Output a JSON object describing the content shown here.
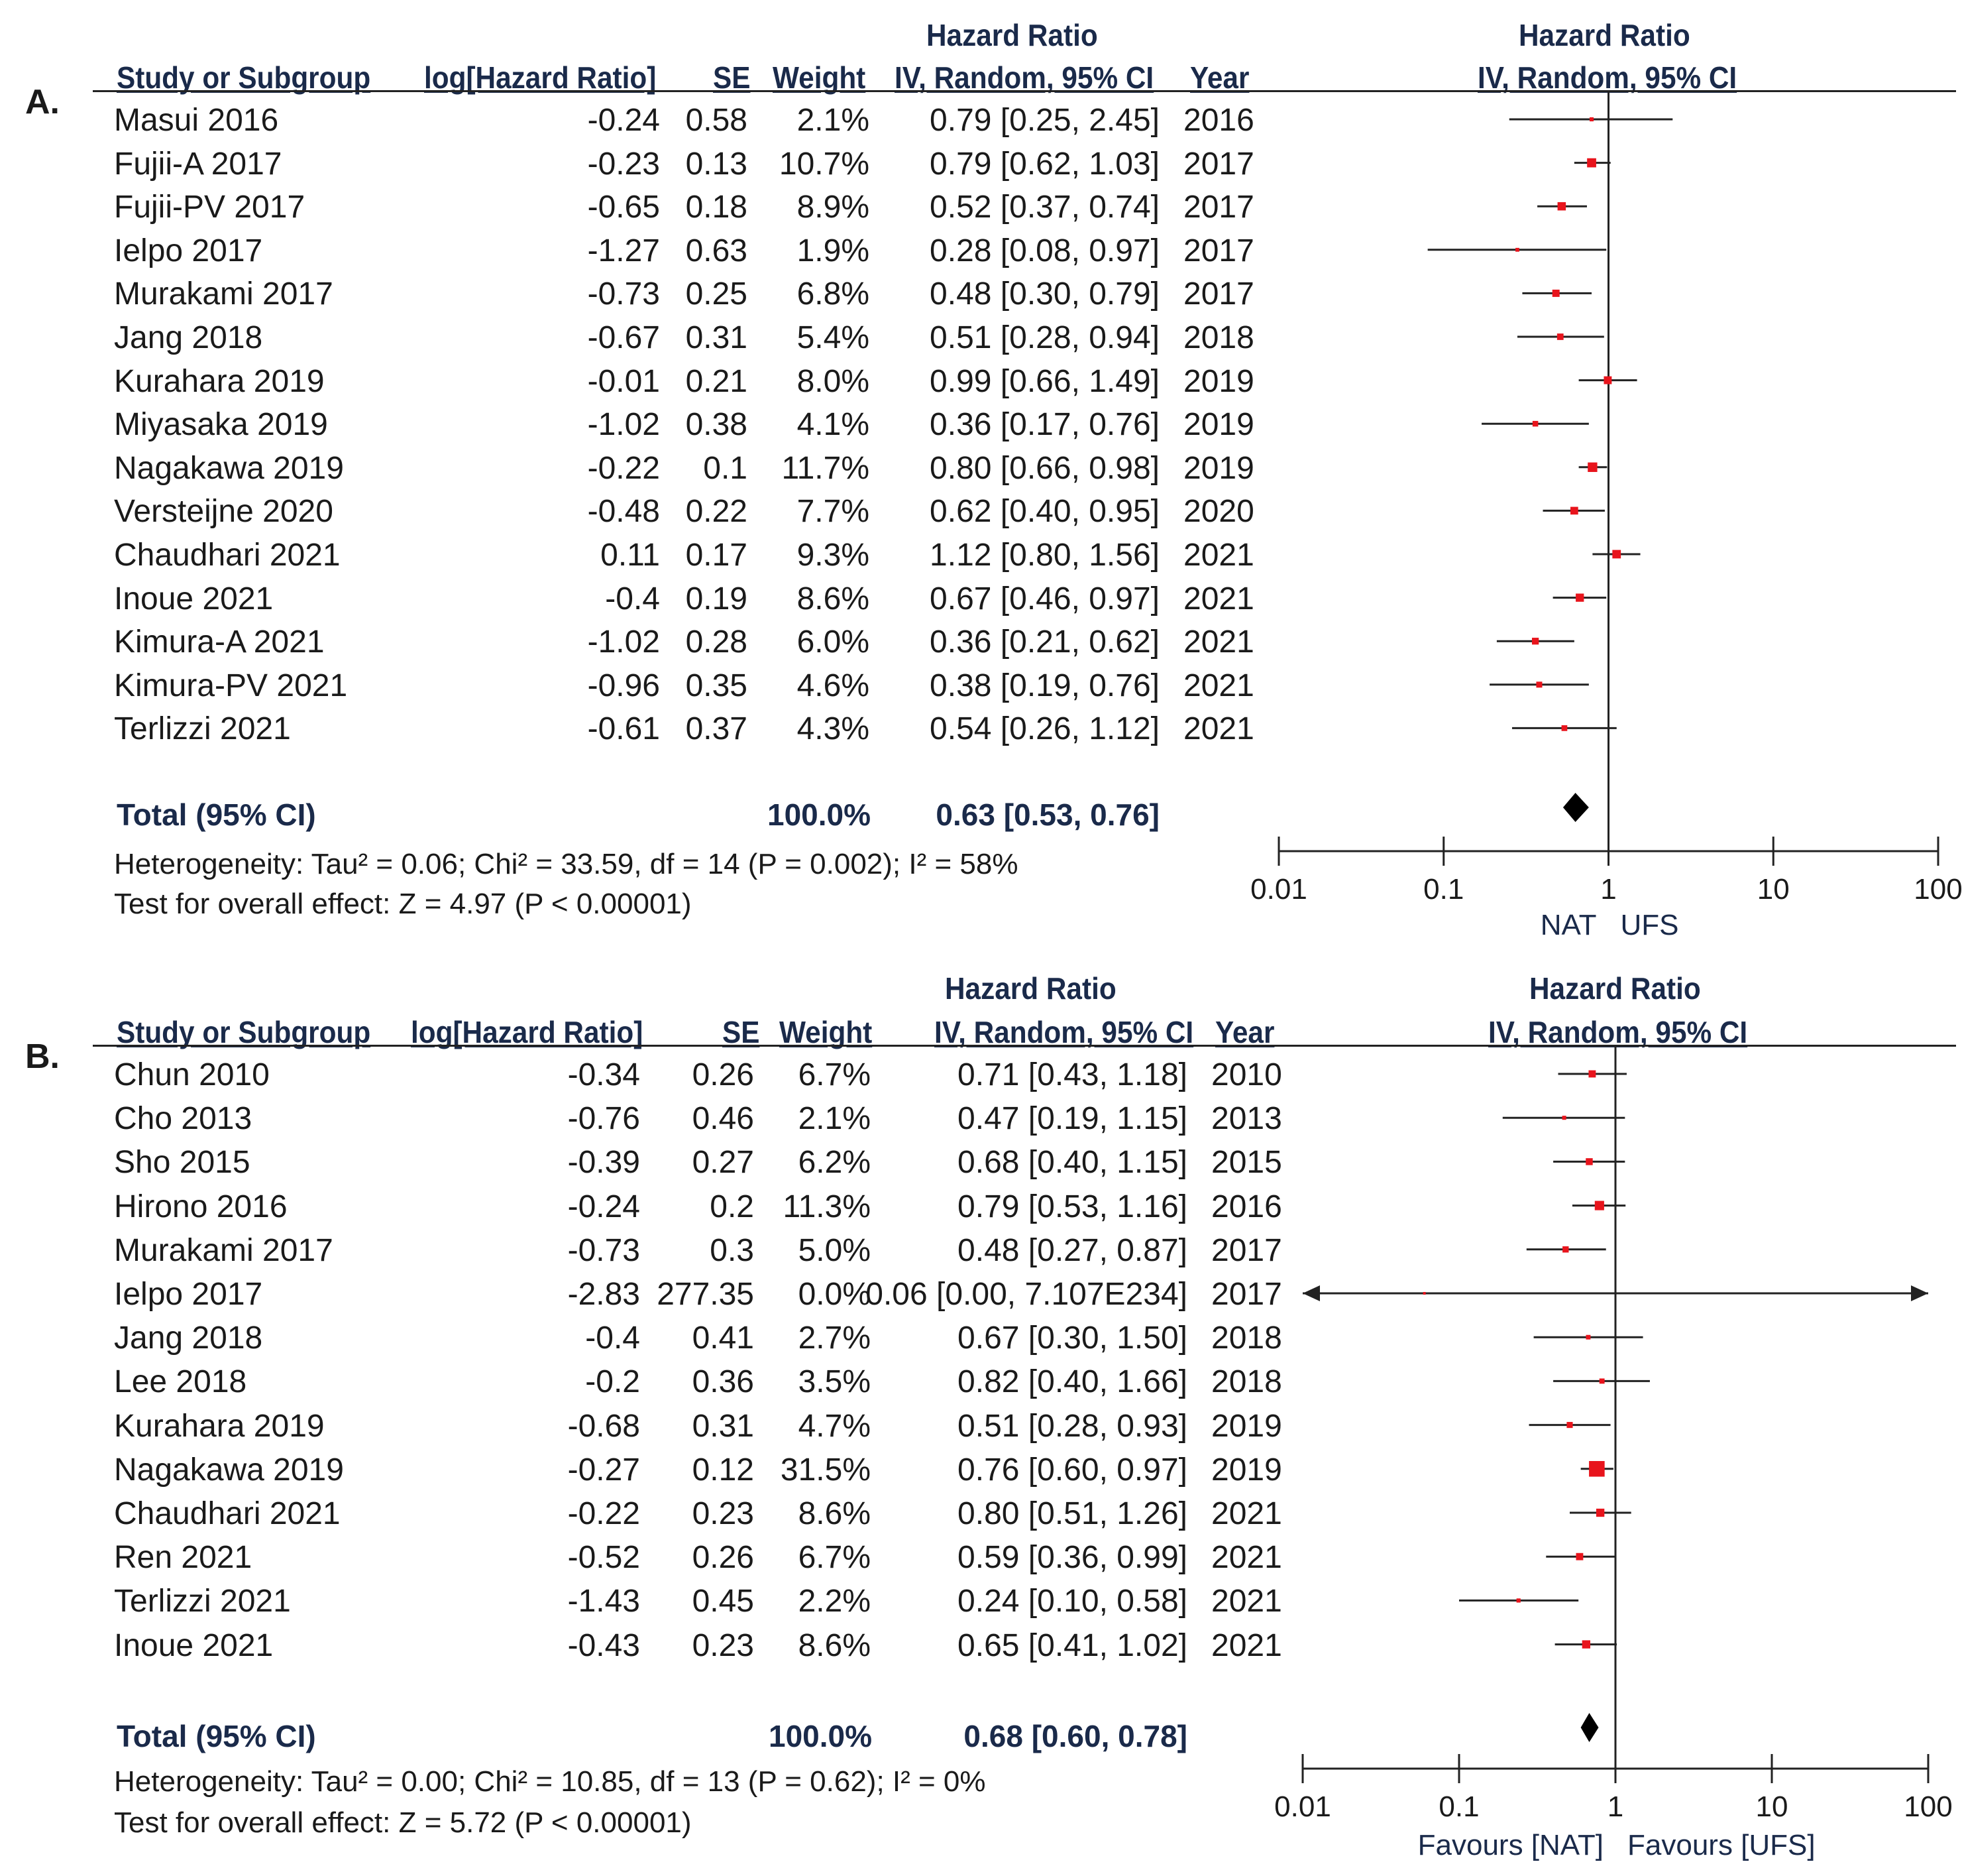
{
  "chart_data": [
    {
      "type": "forest",
      "panel": "A.",
      "header_group": "Hazard Ratio",
      "columns": [
        "Study or Subgroup",
        "log[Hazard Ratio]",
        "SE",
        "Weight",
        "IV, Random, 95% CI",
        "Year"
      ],
      "plot_header_group": "Hazard Ratio",
      "plot_header": "IV, Random, 95% CI",
      "rows": [
        {
          "study": "Masui 2016",
          "loghr": "-0.24",
          "se": "0.58",
          "weight": "2.1%",
          "ci": "0.79 [0.25, 2.45]",
          "year": "2016",
          "hr": 0.79,
          "lo": 0.25,
          "hi": 2.45,
          "w": 2.1
        },
        {
          "study": "Fujii-A 2017",
          "loghr": "-0.23",
          "se": "0.13",
          "weight": "10.7%",
          "ci": "0.79 [0.62, 1.03]",
          "year": "2017",
          "hr": 0.79,
          "lo": 0.62,
          "hi": 1.03,
          "w": 10.7
        },
        {
          "study": "Fujii-PV 2017",
          "loghr": "-0.65",
          "se": "0.18",
          "weight": "8.9%",
          "ci": "0.52 [0.37, 0.74]",
          "year": "2017",
          "hr": 0.52,
          "lo": 0.37,
          "hi": 0.74,
          "w": 8.9
        },
        {
          "study": "Ielpo 2017",
          "loghr": "-1.27",
          "se": "0.63",
          "weight": "1.9%",
          "ci": "0.28 [0.08, 0.97]",
          "year": "2017",
          "hr": 0.28,
          "lo": 0.08,
          "hi": 0.97,
          "w": 1.9
        },
        {
          "study": "Murakami 2017",
          "loghr": "-0.73",
          "se": "0.25",
          "weight": "6.8%",
          "ci": "0.48 [0.30, 0.79]",
          "year": "2017",
          "hr": 0.48,
          "lo": 0.3,
          "hi": 0.79,
          "w": 6.8
        },
        {
          "study": "Jang 2018",
          "loghr": "-0.67",
          "se": "0.31",
          "weight": "5.4%",
          "ci": "0.51 [0.28, 0.94]",
          "year": "2018",
          "hr": 0.51,
          "lo": 0.28,
          "hi": 0.94,
          "w": 5.4
        },
        {
          "study": "Kurahara 2019",
          "loghr": "-0.01",
          "se": "0.21",
          "weight": "8.0%",
          "ci": "0.99 [0.66, 1.49]",
          "year": "2019",
          "hr": 0.99,
          "lo": 0.66,
          "hi": 1.49,
          "w": 8.0
        },
        {
          "study": "Miyasaka 2019",
          "loghr": "-1.02",
          "se": "0.38",
          "weight": "4.1%",
          "ci": "0.36 [0.17, 0.76]",
          "year": "2019",
          "hr": 0.36,
          "lo": 0.17,
          "hi": 0.76,
          "w": 4.1
        },
        {
          "study": "Nagakawa 2019",
          "loghr": "-0.22",
          "se": "0.1",
          "weight": "11.7%",
          "ci": "0.80 [0.66, 0.98]",
          "year": "2019",
          "hr": 0.8,
          "lo": 0.66,
          "hi": 0.98,
          "w": 11.7
        },
        {
          "study": "Versteijne 2020",
          "loghr": "-0.48",
          "se": "0.22",
          "weight": "7.7%",
          "ci": "0.62 [0.40, 0.95]",
          "year": "2020",
          "hr": 0.62,
          "lo": 0.4,
          "hi": 0.95,
          "w": 7.7
        },
        {
          "study": "Chaudhari 2021",
          "loghr": "0.11",
          "se": "0.17",
          "weight": "9.3%",
          "ci": "1.12 [0.80, 1.56]",
          "year": "2021",
          "hr": 1.12,
          "lo": 0.8,
          "hi": 1.56,
          "w": 9.3
        },
        {
          "study": "Inoue 2021",
          "loghr": "-0.4",
          "se": "0.19",
          "weight": "8.6%",
          "ci": "0.67 [0.46, 0.97]",
          "year": "2021",
          "hr": 0.67,
          "lo": 0.46,
          "hi": 0.97,
          "w": 8.6
        },
        {
          "study": "Kimura-A 2021",
          "loghr": "-1.02",
          "se": "0.28",
          "weight": "6.0%",
          "ci": "0.36 [0.21, 0.62]",
          "year": "2021",
          "hr": 0.36,
          "lo": 0.21,
          "hi": 0.62,
          "w": 6.0
        },
        {
          "study": "Kimura-PV 2021",
          "loghr": "-0.96",
          "se": "0.35",
          "weight": "4.6%",
          "ci": "0.38 [0.19, 0.76]",
          "year": "2021",
          "hr": 0.38,
          "lo": 0.19,
          "hi": 0.76,
          "w": 4.6
        },
        {
          "study": "Terlizzi 2021",
          "loghr": "-0.61",
          "se": "0.37",
          "weight": "4.3%",
          "ci": "0.54 [0.26, 1.12]",
          "year": "2021",
          "hr": 0.54,
          "lo": 0.26,
          "hi": 1.12,
          "w": 4.3
        }
      ],
      "total": {
        "label": "Total (95% CI)",
        "weight": "100.0%",
        "ci": "0.63 [0.53, 0.76]",
        "hr": 0.63,
        "lo": 0.53,
        "hi": 0.76
      },
      "heterogeneity": "Heterogeneity: Tau² = 0.06; Chi² = 33.59, df = 14 (P = 0.002); I² = 58%",
      "overall_effect": "Test for overall effect: Z = 4.97 (P < 0.00001)",
      "x_scale": "log",
      "x_ticks": [
        "0.01",
        "0.1",
        "1",
        "10",
        "100"
      ],
      "xlim": [
        0.01,
        100
      ],
      "favours_left": "NAT",
      "favours_right": "UFS"
    },
    {
      "type": "forest",
      "panel": "B.",
      "header_group": "Hazard Ratio",
      "columns": [
        "Study or Subgroup",
        "log[Hazard Ratio]",
        "SE",
        "Weight",
        "IV, Random, 95% CI",
        "Year"
      ],
      "plot_header_group": "Hazard Ratio",
      "plot_header": "IV, Random, 95% CI",
      "rows": [
        {
          "study": "Chun 2010",
          "loghr": "-0.34",
          "se": "0.26",
          "weight": "6.7%",
          "ci": "0.71 [0.43, 1.18]",
          "year": "2010",
          "hr": 0.71,
          "lo": 0.43,
          "hi": 1.18,
          "w": 6.7
        },
        {
          "study": "Cho 2013",
          "loghr": "-0.76",
          "se": "0.46",
          "weight": "2.1%",
          "ci": "0.47 [0.19, 1.15]",
          "year": "2013",
          "hr": 0.47,
          "lo": 0.19,
          "hi": 1.15,
          "w": 2.1
        },
        {
          "study": "Sho 2015",
          "loghr": "-0.39",
          "se": "0.27",
          "weight": "6.2%",
          "ci": "0.68 [0.40, 1.15]",
          "year": "2015",
          "hr": 0.68,
          "lo": 0.4,
          "hi": 1.15,
          "w": 6.2
        },
        {
          "study": "Hirono 2016",
          "loghr": "-0.24",
          "se": "0.2",
          "weight": "11.3%",
          "ci": "0.79 [0.53, 1.16]",
          "year": "2016",
          "hr": 0.79,
          "lo": 0.53,
          "hi": 1.16,
          "w": 11.3
        },
        {
          "study": "Murakami 2017",
          "loghr": "-0.73",
          "se": "0.3",
          "weight": "5.0%",
          "ci": "0.48 [0.27, 0.87]",
          "year": "2017",
          "hr": 0.48,
          "lo": 0.27,
          "hi": 0.87,
          "w": 5.0
        },
        {
          "study": "Ielpo 2017",
          "loghr": "-2.83",
          "se": "277.35",
          "weight": "0.0%",
          "ci": "0.06 [0.00, 7.107E234]",
          "year": "2017",
          "hr": 0.06,
          "lo": 0.0,
          "hi": 7.107e+234,
          "w": 0.0,
          "arrow_left": true,
          "arrow_right": true
        },
        {
          "study": "Jang 2018",
          "loghr": "-0.4",
          "se": "0.41",
          "weight": "2.7%",
          "ci": "0.67 [0.30, 1.50]",
          "year": "2018",
          "hr": 0.67,
          "lo": 0.3,
          "hi": 1.5,
          "w": 2.7
        },
        {
          "study": "Lee 2018",
          "loghr": "-0.2",
          "se": "0.36",
          "weight": "3.5%",
          "ci": "0.82 [0.40, 1.66]",
          "year": "2018",
          "hr": 0.82,
          "lo": 0.4,
          "hi": 1.66,
          "w": 3.5
        },
        {
          "study": "Kurahara 2019",
          "loghr": "-0.68",
          "se": "0.31",
          "weight": "4.7%",
          "ci": "0.51 [0.28, 0.93]",
          "year": "2019",
          "hr": 0.51,
          "lo": 0.28,
          "hi": 0.93,
          "w": 4.7
        },
        {
          "study": "Nagakawa 2019",
          "loghr": "-0.27",
          "se": "0.12",
          "weight": "31.5%",
          "ci": "0.76 [0.60, 0.97]",
          "year": "2019",
          "hr": 0.76,
          "lo": 0.6,
          "hi": 0.97,
          "w": 31.5
        },
        {
          "study": "Chaudhari 2021",
          "loghr": "-0.22",
          "se": "0.23",
          "weight": "8.6%",
          "ci": "0.80 [0.51, 1.26]",
          "year": "2021",
          "hr": 0.8,
          "lo": 0.51,
          "hi": 1.26,
          "w": 8.6
        },
        {
          "study": "Ren 2021",
          "loghr": "-0.52",
          "se": "0.26",
          "weight": "6.7%",
          "ci": "0.59 [0.36, 0.99]",
          "year": "2021",
          "hr": 0.59,
          "lo": 0.36,
          "hi": 0.99,
          "w": 6.7
        },
        {
          "study": "Terlizzi 2021",
          "loghr": "-1.43",
          "se": "0.45",
          "weight": "2.2%",
          "ci": "0.24 [0.10, 0.58]",
          "year": "2021",
          "hr": 0.24,
          "lo": 0.1,
          "hi": 0.58,
          "w": 2.2
        },
        {
          "study": "Inoue 2021",
          "loghr": "-0.43",
          "se": "0.23",
          "weight": "8.6%",
          "ci": "0.65 [0.41, 1.02]",
          "year": "2021",
          "hr": 0.65,
          "lo": 0.41,
          "hi": 1.02,
          "w": 8.6
        }
      ],
      "total": {
        "label": "Total (95% CI)",
        "weight": "100.0%",
        "ci": "0.68 [0.60, 0.78]",
        "hr": 0.68,
        "lo": 0.6,
        "hi": 0.78
      },
      "heterogeneity": "Heterogeneity: Tau² = 0.00; Chi² = 10.85, df = 13 (P = 0.62); I² = 0%",
      "overall_effect": "Test for overall effect: Z = 5.72 (P < 0.00001)",
      "x_scale": "log",
      "x_ticks": [
        "0.01",
        "0.1",
        "1",
        "10",
        "100"
      ],
      "xlim": [
        0.01,
        100
      ],
      "favours_left": "Favours [NAT]",
      "favours_right": "Favours [UFS]"
    }
  ],
  "colors": {
    "marker": "#e8141c",
    "line": "#222222",
    "header": "#1a2a4a"
  }
}
